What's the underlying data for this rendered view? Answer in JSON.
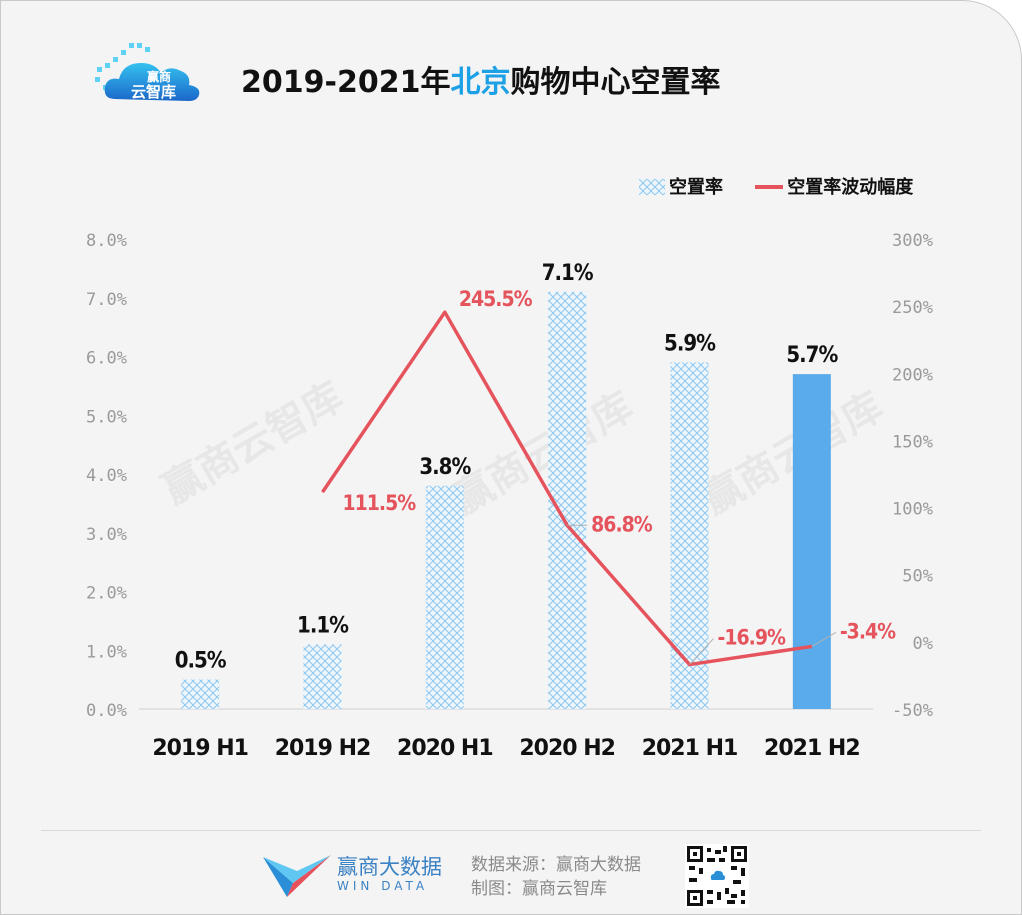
{
  "header": {
    "title_prefix": "2019-2021年",
    "title_highlight": "北京",
    "title_suffix": "购物中心空置率",
    "logo_line1": "赢商",
    "logo_line2": "云智库"
  },
  "legend": {
    "bar_label": "空置率",
    "line_label": "空置率波动幅度"
  },
  "watermark": "赢商云智库",
  "footer": {
    "brand": "赢商大数据",
    "brand_sub": "WIN DATA",
    "source": "数据来源：赢商大数据",
    "made_by": "制图：赢商云智库"
  },
  "chart_data": {
    "type": "bar",
    "title": "2019-2021年北京购物中心空置率",
    "categories": [
      "2019 H1",
      "2019 H2",
      "2020 H1",
      "2020 H2",
      "2021 H1",
      "2021 H2"
    ],
    "series": [
      {
        "name": "空置率",
        "type": "bar",
        "axis": "left",
        "values": [
          0.5,
          1.1,
          3.8,
          7.1,
          5.9,
          5.7
        ],
        "labels": [
          "0.5%",
          "1.1%",
          "3.8%",
          "7.1%",
          "5.9%",
          "5.7%"
        ]
      },
      {
        "name": "空置率波动幅度",
        "type": "line",
        "axis": "right",
        "values": [
          null,
          111.5,
          245.5,
          86.8,
          -16.9,
          -3.4
        ],
        "labels": [
          "",
          "111.5%",
          "245.5%",
          "86.8%",
          "-16.9%",
          "-3.4%"
        ]
      }
    ],
    "y_left": {
      "min": 0,
      "max": 8,
      "ticks": [
        "0.0%",
        "1.0%",
        "2.0%",
        "3.0%",
        "4.0%",
        "5.0%",
        "6.0%",
        "7.0%",
        "8.0%"
      ]
    },
    "y_right": {
      "min": -50,
      "max": 300,
      "ticks": [
        "-50%",
        "0%",
        "50%",
        "100%",
        "150%",
        "200%",
        "250%",
        "300%"
      ]
    },
    "colors": {
      "bar_pattern": "#8fc8ee",
      "bar_highlight": "#5aabec",
      "line": "#e5535d",
      "line_label": "#e5535d",
      "axis_text": "#9a9a9a"
    },
    "highlight_index": 5
  }
}
